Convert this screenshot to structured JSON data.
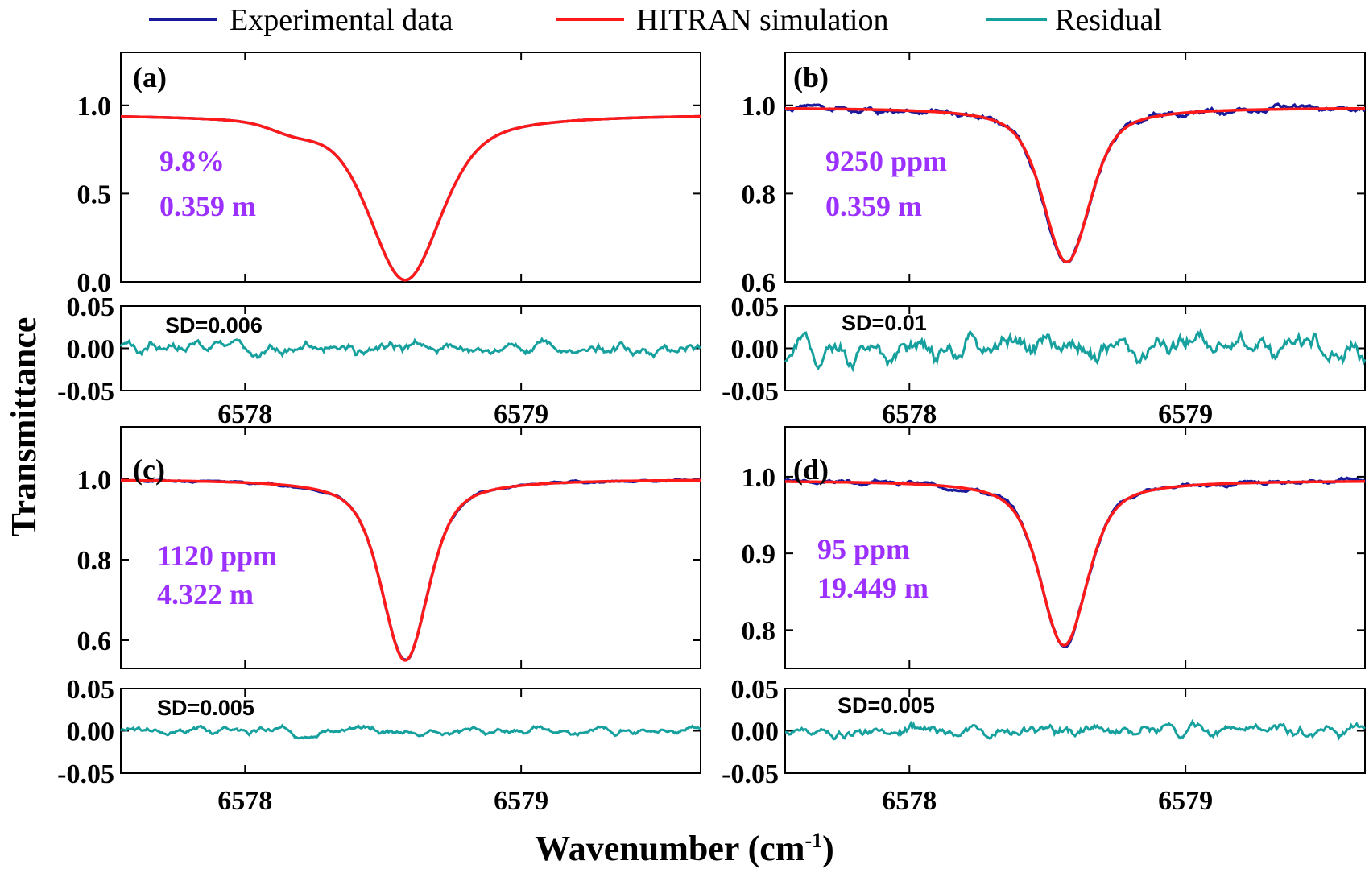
{
  "chart_data": {
    "type": "line",
    "legend": {
      "position": "top",
      "entries": [
        {
          "name": "Experimental data",
          "color": "#1a1a9c"
        },
        {
          "name": "HITRAN simulation",
          "color": "#ff1a1a"
        },
        {
          "name": "Residual",
          "color": "#16a09e"
        }
      ]
    },
    "ylabel": "Transmittance",
    "xlabel": "Wavenumber (cm",
    "xlabel_sup": "-1",
    "xlabel_close": ")",
    "xlim": [
      6577.55,
      6579.65
    ],
    "xticks": [
      6578,
      6579
    ],
    "xtick_labels": [
      "6578",
      "6579"
    ],
    "residual_ylim": [
      -0.05,
      0.05
    ],
    "residual_ticks": [
      "0.05",
      "0.00",
      "-0.05"
    ],
    "residual_tick_values": [
      0.05,
      0.0,
      -0.05
    ],
    "panels": [
      {
        "label": "(a)",
        "concentration": "9.8%",
        "path_length": "0.359 m",
        "sd_label": "SD=0.006",
        "ylim": [
          0.0,
          1.3
        ],
        "yticks": [
          1.0,
          0.5,
          0.0
        ],
        "ytick_labels": [
          "1.0",
          "0.5",
          "0.0"
        ],
        "baseline": 0.95,
        "line_center": 6578.58,
        "line_depth": 0.94,
        "line_width": 0.17,
        "shoulder_center": 6578.18,
        "shoulder_depth": 0.05,
        "noise": 0.0,
        "residual_amp": 0.005,
        "residual_seed": 1
      },
      {
        "label": "(b)",
        "concentration": "9250 ppm",
        "path_length": "0.359 m",
        "sd_label": "SD=0.01",
        "ylim": [
          0.6,
          1.12
        ],
        "yticks": [
          1.0,
          0.8,
          0.6
        ],
        "ytick_labels": [
          "1.0",
          "0.8",
          "0.6"
        ],
        "baseline": 0.995,
        "line_center": 6578.57,
        "line_depth": 0.35,
        "line_width": 0.11,
        "shoulder_center": 6578.2,
        "shoulder_depth": 0.0,
        "noise": 0.012,
        "residual_amp": 0.011,
        "residual_seed": 2
      },
      {
        "label": "(c)",
        "concentration": "1120 ppm",
        "path_length": "4.322 m",
        "sd_label": "SD=0.005",
        "ylim": [
          0.53,
          1.13
        ],
        "yticks": [
          1.0,
          0.8,
          0.6
        ],
        "ytick_labels": [
          "1.0",
          "0.8",
          "0.6"
        ],
        "baseline": 1.0,
        "line_center": 6578.58,
        "line_depth": 0.45,
        "line_width": 0.11,
        "shoulder_center": 6578.2,
        "shoulder_depth": 0.0,
        "noise": 0.004,
        "residual_amp": 0.004,
        "residual_seed": 3
      },
      {
        "label": "(d)",
        "concentration": "95 ppm",
        "path_length": "19.449 m",
        "sd_label": "SD=0.005",
        "ylim": [
          0.75,
          1.065
        ],
        "yticks": [
          1.0,
          0.9,
          0.8
        ],
        "ytick_labels": [
          "1.0",
          "0.9",
          "0.8"
        ],
        "baseline": 0.995,
        "line_center": 6578.56,
        "line_depth": 0.215,
        "line_width": 0.11,
        "shoulder_center": 6578.2,
        "shoulder_depth": 0.0,
        "noise": 0.005,
        "residual_amp": 0.005,
        "residual_seed": 4
      }
    ]
  }
}
